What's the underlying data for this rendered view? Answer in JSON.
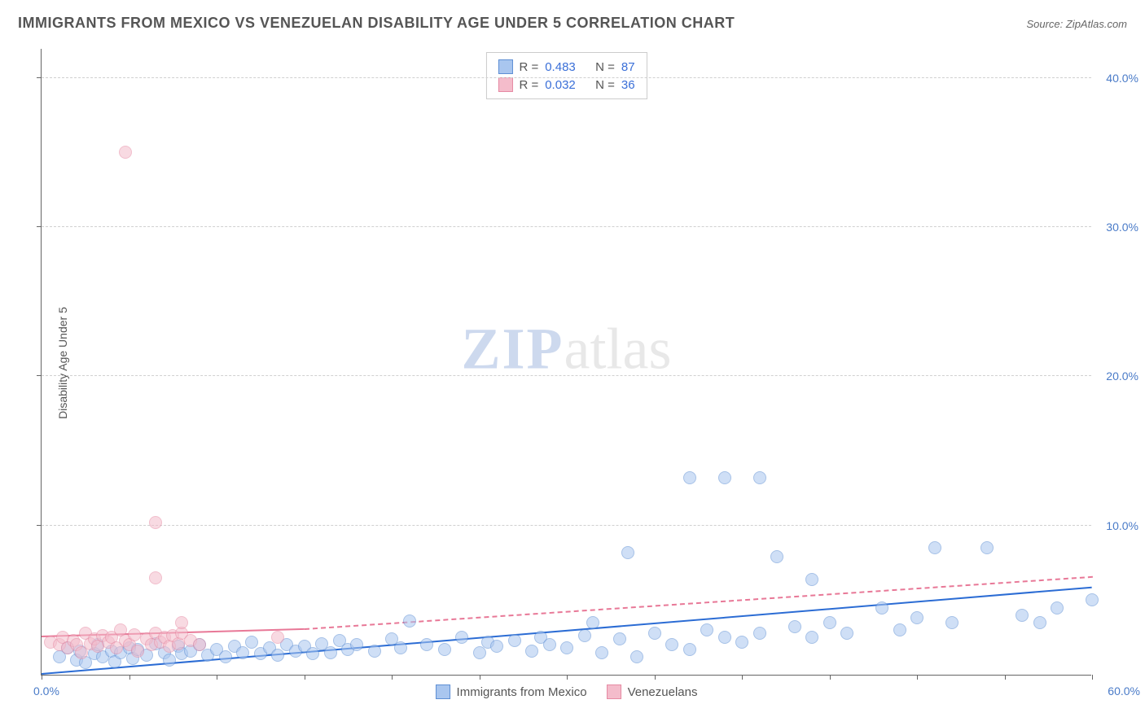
{
  "title": "IMMIGRANTS FROM MEXICO VS VENEZUELAN DISABILITY AGE UNDER 5 CORRELATION CHART",
  "source": "Source: ZipAtlas.com",
  "ylabel": "Disability Age Under 5",
  "watermark_zip": "ZIP",
  "watermark_atlas": "atlas",
  "chart": {
    "type": "scatter",
    "xlim": [
      0,
      60
    ],
    "ylim": [
      0,
      42
    ],
    "xtick_step": 5,
    "xaxis_min_label": "0.0%",
    "xaxis_max_label": "60.0%",
    "yticks": [
      10,
      20,
      30,
      40
    ],
    "ytick_labels": [
      "10.0%",
      "20.0%",
      "30.0%",
      "40.0%"
    ],
    "grid_color": "#d0d0d0",
    "background_color": "#ffffff",
    "point_radius": 8,
    "point_opacity": 0.55,
    "series": [
      {
        "name": "Immigrants from Mexico",
        "color_fill": "#a9c6ef",
        "color_stroke": "#5e8fd4",
        "r_label": "R =",
        "r_value": "0.483",
        "n_label": "N =",
        "n_value": "87",
        "trend": {
          "x1": 0,
          "y1": 0,
          "x2": 60,
          "y2": 5.8,
          "color": "#2b6cd4",
          "width": 2,
          "dash": false,
          "dash_ext_x": 60,
          "dash_ext_y": 5.8
        },
        "points": [
          [
            1,
            1.2
          ],
          [
            1.5,
            1.8
          ],
          [
            2,
            1.0
          ],
          [
            2.2,
            1.6
          ],
          [
            2.5,
            0.8
          ],
          [
            3,
            1.4
          ],
          [
            3.2,
            2.0
          ],
          [
            3.5,
            1.2
          ],
          [
            4,
            1.6
          ],
          [
            4.2,
            0.9
          ],
          [
            4.5,
            1.5
          ],
          [
            5,
            1.8
          ],
          [
            5.2,
            1.1
          ],
          [
            5.5,
            1.7
          ],
          [
            6,
            1.3
          ],
          [
            6.5,
            2.1
          ],
          [
            7,
            1.5
          ],
          [
            7.3,
            1.0
          ],
          [
            7.8,
            1.9
          ],
          [
            8,
            1.4
          ],
          [
            8.5,
            1.6
          ],
          [
            9,
            2.0
          ],
          [
            9.5,
            1.3
          ],
          [
            10,
            1.7
          ],
          [
            10.5,
            1.2
          ],
          [
            11,
            1.9
          ],
          [
            11.5,
            1.5
          ],
          [
            12,
            2.2
          ],
          [
            12.5,
            1.4
          ],
          [
            13,
            1.8
          ],
          [
            13.5,
            1.3
          ],
          [
            14,
            2.0
          ],
          [
            14.5,
            1.6
          ],
          [
            15,
            1.9
          ],
          [
            15.5,
            1.4
          ],
          [
            16,
            2.1
          ],
          [
            16.5,
            1.5
          ],
          [
            17,
            2.3
          ],
          [
            17.5,
            1.7
          ],
          [
            18,
            2.0
          ],
          [
            19,
            1.6
          ],
          [
            20,
            2.4
          ],
          [
            20.5,
            1.8
          ],
          [
            21,
            3.6
          ],
          [
            22,
            2.0
          ],
          [
            23,
            1.7
          ],
          [
            24,
            2.5
          ],
          [
            25,
            1.5
          ],
          [
            25.5,
            2.2
          ],
          [
            26,
            1.9
          ],
          [
            27,
            2.3
          ],
          [
            28,
            1.6
          ],
          [
            28.5,
            2.5
          ],
          [
            29,
            2.0
          ],
          [
            30,
            1.8
          ],
          [
            31,
            2.6
          ],
          [
            31.5,
            3.5
          ],
          [
            32,
            1.5
          ],
          [
            33,
            2.4
          ],
          [
            34,
            1.2
          ],
          [
            33.5,
            8.2
          ],
          [
            35,
            2.8
          ],
          [
            36,
            2.0
          ],
          [
            37,
            1.7
          ],
          [
            37,
            13.2
          ],
          [
            38,
            3.0
          ],
          [
            39,
            2.5
          ],
          [
            39,
            13.2
          ],
          [
            40,
            2.2
          ],
          [
            41,
            13.2
          ],
          [
            41,
            2.8
          ],
          [
            42,
            7.9
          ],
          [
            43,
            3.2
          ],
          [
            44,
            2.5
          ],
          [
            44,
            6.4
          ],
          [
            45,
            3.5
          ],
          [
            46,
            2.8
          ],
          [
            48,
            4.5
          ],
          [
            49,
            3.0
          ],
          [
            50,
            3.8
          ],
          [
            51,
            8.5
          ],
          [
            52,
            3.5
          ],
          [
            54,
            8.5
          ],
          [
            56,
            4.0
          ],
          [
            57,
            3.5
          ],
          [
            58,
            4.5
          ],
          [
            60,
            5.0
          ]
        ]
      },
      {
        "name": "Venezuelans",
        "color_fill": "#f4bccb",
        "color_stroke": "#e68aa3",
        "r_label": "R =",
        "r_value": "0.032",
        "n_label": "N =",
        "n_value": "36",
        "trend": {
          "x1": 0,
          "y1": 2.5,
          "x2": 15,
          "y2": 3.0,
          "color": "#e87897",
          "width": 2,
          "dash": false,
          "dash_ext_x": 60,
          "dash_ext_y": 6.5
        },
        "points": [
          [
            0.5,
            2.2
          ],
          [
            1,
            2.0
          ],
          [
            1.2,
            2.5
          ],
          [
            1.5,
            1.8
          ],
          [
            1.8,
            2.3
          ],
          [
            2,
            2.0
          ],
          [
            2.3,
            1.5
          ],
          [
            2.5,
            2.8
          ],
          [
            2.8,
            2.1
          ],
          [
            3,
            2.4
          ],
          [
            3.2,
            1.9
          ],
          [
            3.5,
            2.6
          ],
          [
            3.8,
            2.2
          ],
          [
            4,
            2.5
          ],
          [
            4.3,
            1.8
          ],
          [
            4.5,
            3.0
          ],
          [
            4.8,
            2.3
          ],
          [
            5,
            2.0
          ],
          [
            5.3,
            2.7
          ],
          [
            5.5,
            1.6
          ],
          [
            4.8,
            35.0
          ],
          [
            6,
            2.4
          ],
          [
            6.3,
            2.0
          ],
          [
            6.5,
            2.8
          ],
          [
            6.5,
            10.2
          ],
          [
            6.8,
            2.2
          ],
          [
            7,
            2.5
          ],
          [
            6.5,
            6.5
          ],
          [
            7.3,
            1.9
          ],
          [
            7.5,
            2.6
          ],
          [
            7.8,
            2.1
          ],
          [
            8,
            2.8
          ],
          [
            8,
            3.5
          ],
          [
            8.5,
            2.3
          ],
          [
            9,
            2.0
          ],
          [
            13.5,
            2.5
          ]
        ]
      }
    ]
  },
  "bottom_legend": {
    "items": [
      {
        "label": "Immigrants from Mexico",
        "fill": "#a9c6ef",
        "stroke": "#5e8fd4"
      },
      {
        "label": "Venezuelans",
        "fill": "#f4bccb",
        "stroke": "#e68aa3"
      }
    ]
  }
}
